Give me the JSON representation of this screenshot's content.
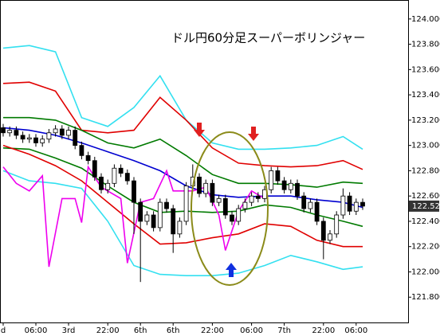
{
  "chart_data": {
    "type": "candlestick",
    "title": "ドル円60分足スーパーボリンジャー",
    "categories": [
      "d",
      null,
      null,
      null,
      null,
      "06:00",
      null,
      null,
      null,
      null,
      "3rd",
      null,
      null,
      null,
      null,
      null,
      "22:00",
      null,
      null,
      null,
      null,
      "6th",
      null,
      null,
      null,
      null,
      "6th",
      null,
      null,
      null,
      null,
      null,
      "22:00",
      null,
      null,
      null,
      null,
      null,
      "06:00",
      null,
      null,
      null,
      null,
      "7th",
      null,
      null,
      null,
      null,
      null,
      "22:00",
      null,
      null,
      null,
      null,
      "06:00",
      null
    ],
    "open": [
      123.14,
      123.1,
      123.12,
      123.08,
      123.05,
      123.06,
      123.02,
      123.05,
      123.1,
      123.13,
      123.08,
      123.12,
      123.0,
      122.92,
      122.88,
      122.75,
      122.65,
      122.7,
      122.82,
      122.78,
      122.72,
      122.55,
      122.4,
      122.45,
      122.35,
      122.55,
      122.5,
      122.3,
      122.4,
      122.68,
      122.75,
      122.62,
      122.7,
      122.55,
      122.58,
      122.45,
      122.4,
      122.5,
      122.55,
      122.6,
      122.58,
      122.65,
      122.8,
      122.72,
      122.65,
      122.7,
      122.6,
      122.5,
      122.55,
      122.4,
      122.25,
      122.3,
      122.45,
      122.6,
      122.48,
      122.55
    ],
    "high": [
      123.17,
      123.15,
      123.15,
      123.11,
      123.09,
      123.09,
      123.08,
      123.13,
      123.16,
      123.16,
      123.15,
      123.15,
      123.03,
      122.95,
      122.91,
      122.78,
      122.73,
      122.85,
      122.85,
      122.81,
      122.75,
      122.58,
      122.48,
      122.48,
      122.58,
      122.58,
      122.53,
      122.43,
      122.71,
      122.85,
      122.78,
      122.73,
      122.73,
      122.61,
      122.61,
      122.48,
      122.53,
      122.58,
      122.63,
      122.63,
      122.68,
      122.83,
      122.83,
      122.75,
      122.73,
      122.73,
      122.63,
      122.58,
      122.58,
      122.43,
      122.33,
      122.48,
      122.66,
      122.63,
      122.58,
      122.58
    ],
    "low": [
      123.07,
      123.07,
      123.05,
      123.02,
      123.02,
      122.99,
      122.99,
      123.02,
      123.07,
      123.05,
      123.05,
      122.97,
      122.89,
      122.85,
      122.72,
      122.62,
      122.62,
      122.67,
      122.75,
      122.69,
      122.3,
      121.92,
      122.37,
      122.32,
      122.32,
      122.47,
      122.15,
      122.27,
      122.37,
      122.65,
      122.59,
      122.59,
      122.52,
      122.52,
      122.42,
      122.37,
      122.37,
      122.47,
      122.52,
      122.55,
      122.55,
      122.62,
      122.69,
      122.62,
      122.62,
      122.57,
      122.47,
      122.47,
      122.37,
      122.1,
      122.22,
      122.27,
      122.42,
      122.45,
      122.45,
      122.49
    ],
    "close": [
      123.1,
      123.12,
      123.08,
      123.05,
      123.06,
      123.02,
      123.05,
      123.1,
      123.13,
      123.08,
      123.12,
      123.0,
      122.92,
      122.88,
      122.75,
      122.65,
      122.7,
      122.82,
      122.78,
      122.72,
      122.55,
      122.4,
      122.45,
      122.35,
      122.55,
      122.5,
      122.3,
      122.4,
      122.68,
      122.75,
      122.62,
      122.7,
      122.55,
      122.58,
      122.45,
      122.4,
      122.5,
      122.55,
      122.6,
      122.58,
      122.65,
      122.8,
      122.72,
      122.65,
      122.7,
      122.6,
      122.5,
      122.55,
      122.4,
      122.25,
      122.3,
      122.45,
      122.6,
      122.48,
      122.55,
      122.52
    ],
    "lines": [
      {
        "color": "#33e0f0",
        "x": [
          0,
          4,
          8,
          12,
          16,
          20,
          24,
          28,
          32,
          36,
          40,
          44,
          48,
          52,
          55
        ],
        "values": [
          123.77,
          123.79,
          123.74,
          123.22,
          123.15,
          123.3,
          123.55,
          123.2,
          123.02,
          122.97,
          122.97,
          122.98,
          123.0,
          123.07,
          122.97
        ]
      },
      {
        "color": "#e00000",
        "x": [
          0,
          4,
          8,
          12,
          16,
          20,
          24,
          28,
          32,
          36,
          40,
          44,
          48,
          52,
          55
        ],
        "values": [
          123.49,
          123.5,
          123.43,
          123.12,
          123.1,
          123.12,
          123.38,
          123.2,
          122.98,
          122.86,
          122.84,
          122.83,
          122.84,
          122.88,
          122.81
        ]
      },
      {
        "color": "#007a00",
        "x": [
          0,
          4,
          8,
          12,
          16,
          20,
          24,
          28,
          32,
          36,
          40,
          44,
          48,
          52,
          55
        ],
        "values": [
          123.22,
          123.22,
          123.2,
          123.12,
          123.02,
          122.98,
          123.05,
          122.92,
          122.77,
          122.7,
          122.7,
          122.69,
          122.67,
          122.71,
          122.7
        ]
      },
      {
        "color": "#0000d0",
        "x": [
          0,
          4,
          8,
          12,
          16,
          20,
          24,
          28,
          32,
          36,
          40,
          44,
          48,
          52,
          55
        ],
        "values": [
          123.14,
          123.12,
          123.08,
          123.02,
          122.95,
          122.88,
          122.8,
          122.68,
          122.61,
          122.59,
          122.6,
          122.6,
          122.57,
          122.55,
          122.51
        ]
      },
      {
        "color": "#007a00",
        "x": [
          0,
          4,
          8,
          12,
          16,
          20,
          24,
          28,
          32,
          36,
          40,
          44,
          48,
          52,
          55
        ],
        "values": [
          122.98,
          122.97,
          122.9,
          122.82,
          122.68,
          122.55,
          122.47,
          122.48,
          122.47,
          122.48,
          122.53,
          122.51,
          122.45,
          122.4,
          122.36
        ]
      },
      {
        "color": "#e00000",
        "x": [
          0,
          4,
          8,
          12,
          16,
          20,
          24,
          28,
          32,
          36,
          40,
          44,
          48,
          52,
          55
        ],
        "values": [
          123.0,
          122.93,
          122.84,
          122.72,
          122.55,
          122.38,
          122.22,
          122.23,
          122.27,
          122.3,
          122.38,
          122.36,
          122.25,
          122.2,
          122.2
        ]
      },
      {
        "color": "#33e0f0",
        "x": [
          0,
          4,
          8,
          12,
          16,
          20,
          24,
          28,
          32,
          36,
          40,
          44,
          48,
          52,
          55
        ],
        "values": [
          122.8,
          122.72,
          122.7,
          122.66,
          122.4,
          122.05,
          121.98,
          121.97,
          121.97,
          121.99,
          122.05,
          122.13,
          122.08,
          122.02,
          122.04
        ]
      },
      {
        "color": "#ee00ee",
        "x": [
          0,
          2,
          4,
          6,
          7,
          9,
          11,
          12,
          13,
          15,
          18,
          19,
          21,
          23,
          25,
          26,
          29,
          31,
          33,
          34,
          36,
          38,
          40
        ],
        "values": [
          122.83,
          122.7,
          122.64,
          122.76,
          122.04,
          122.58,
          122.58,
          122.39,
          122.83,
          122.67,
          122.58,
          122.07,
          122.55,
          122.58,
          122.8,
          122.64,
          122.64,
          122.67,
          122.45,
          122.17,
          122.48,
          122.64,
          122.58
        ]
      }
    ],
    "ylim": [
      121.6,
      124.15
    ],
    "yticks": [
      {
        "value": 124.0,
        "label": "124.000"
      },
      {
        "value": 123.8,
        "label": "123.800"
      },
      {
        "value": 123.6,
        "label": "123.600"
      },
      {
        "value": 123.4,
        "label": "123.400"
      },
      {
        "value": 123.2,
        "label": "123.200"
      },
      {
        "value": 123.0,
        "label": "123.000"
      },
      {
        "value": 122.8,
        "label": "122.800"
      },
      {
        "value": 122.6,
        "label": "122.600"
      },
      {
        "value": 122.4,
        "label": "122.400"
      },
      {
        "value": 122.2,
        "label": "122.200"
      },
      {
        "value": 122.0,
        "label": "122.000"
      },
      {
        "value": 121.8,
        "label": "121.800"
      }
    ],
    "last_price": {
      "value": 122.52,
      "label": "122.52"
    },
    "grid": false,
    "up_color": "#ffffff",
    "down_color": "#000000"
  }
}
